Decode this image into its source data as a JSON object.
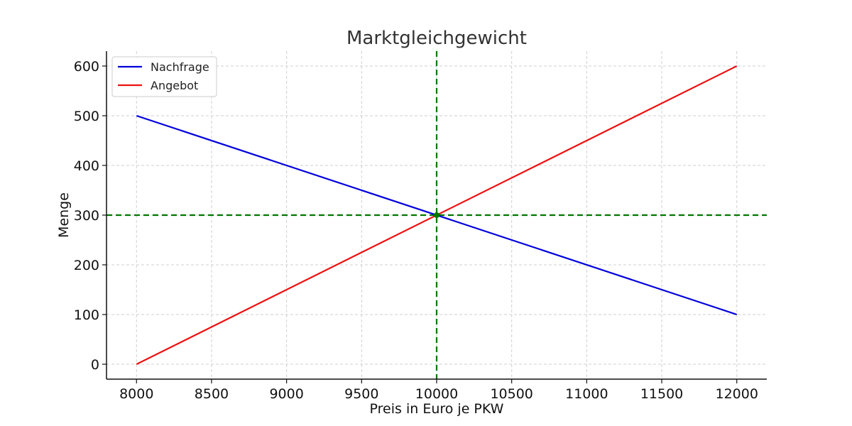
{
  "chart_data": {
    "type": "line",
    "title": "Marktgleichgewicht",
    "xlabel": "Preis in Euro je PKW",
    "ylabel": "Menge",
    "xlim": [
      7800,
      12200
    ],
    "ylim": [
      -30,
      630
    ],
    "x_ticks": [
      8000,
      8500,
      9000,
      9500,
      10000,
      10500,
      11000,
      11500,
      12000
    ],
    "y_ticks": [
      0,
      100,
      200,
      300,
      400,
      500,
      600
    ],
    "grid": true,
    "legend_position": "top-left",
    "series": [
      {
        "name": "Nachfrage",
        "color": "#0000dd",
        "x": [
          8000,
          12000
        ],
        "y": [
          500,
          100
        ]
      },
      {
        "name": "Angebot",
        "color": "#ee1111",
        "x": [
          8000,
          12000
        ],
        "y": [
          0,
          600
        ]
      }
    ],
    "equilibrium": {
      "x": 10000,
      "y": 300,
      "color": "#007700"
    }
  }
}
